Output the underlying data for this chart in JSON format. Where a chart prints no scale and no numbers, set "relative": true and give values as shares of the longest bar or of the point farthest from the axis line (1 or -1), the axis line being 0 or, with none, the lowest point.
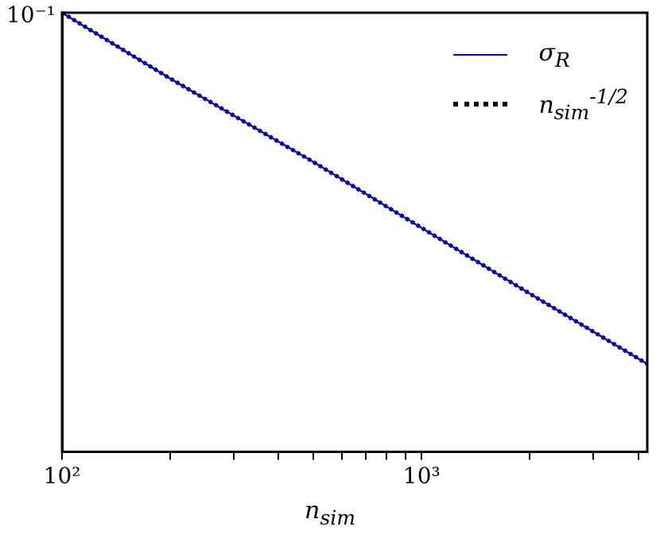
{
  "chart_data": {
    "type": "line",
    "xlabel": "n$_{sim}$",
    "log": "x",
    "grid": false,
    "legend": "top right",
    "relative": true,
    "annotations": [
      "10⁻¹"
    ],
    "x": [
      100,
      200,
      500,
      1000,
      2000,
      4240
    ],
    "series": [
      {
        "name": "σ$_{R}$",
        "color": "#0000ff",
        "line_style": "solid",
        "values": [
          1,
          0.85,
          0.66,
          0.51,
          0.36,
          0.2
        ]
      },
      {
        "name": "n$_{sim}$$^{-1/2}$",
        "color": "#000000",
        "line_style": "dotted",
        "values": [
          1,
          0.85,
          0.66,
          0.51,
          0.36,
          0.2
        ]
      }
    ],
    "xlim": [
      100,
      4240
    ],
    "xticks": [
      {
        "value": 100,
        "label": "10²"
      },
      {
        "value": 200,
        "label": null
      },
      {
        "value": 300,
        "label": null
      },
      {
        "value": 400,
        "label": null
      },
      {
        "value": 500,
        "label": null
      },
      {
        "value": 600,
        "label": null
      },
      {
        "value": 700,
        "label": null
      },
      {
        "value": 800,
        "label": null
      },
      {
        "value": 900,
        "label": null
      },
      {
        "value": 1000,
        "label": "10³"
      },
      {
        "value": 2000,
        "label": null
      },
      {
        "value": 3000,
        "label": null
      },
      {
        "value": 4000,
        "label": null
      }
    ]
  }
}
